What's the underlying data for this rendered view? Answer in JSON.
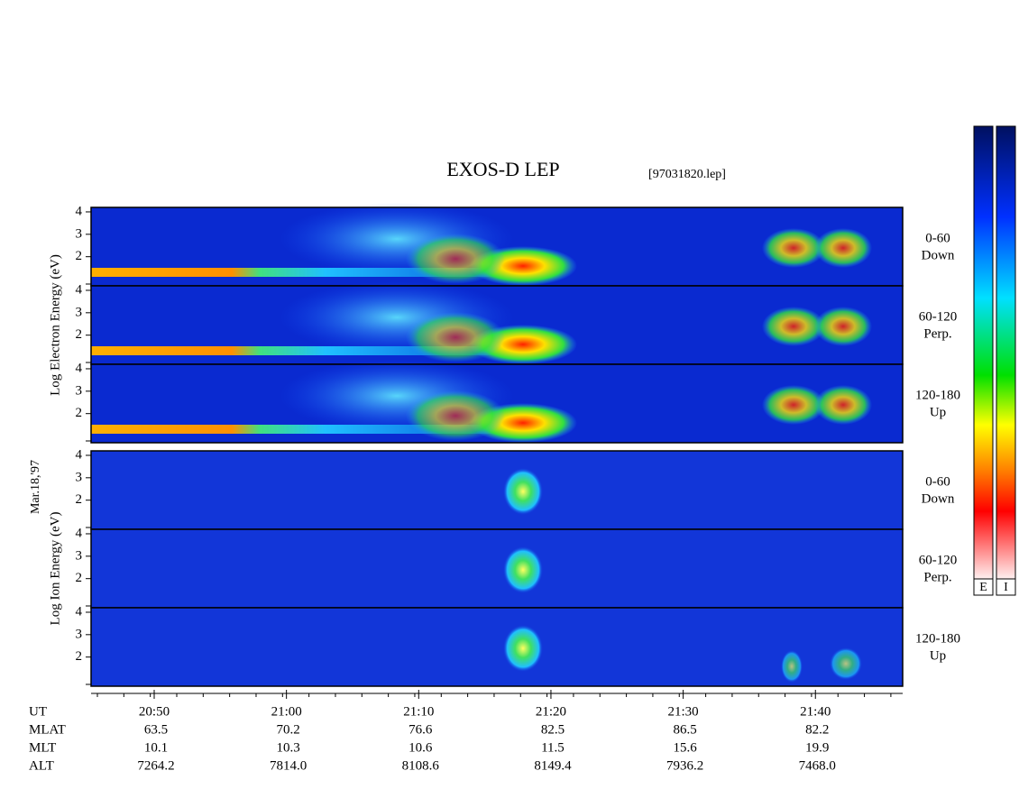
{
  "title": "EXOS-D LEP",
  "file": "[97031820.lep]",
  "date": "Mar.18,'97",
  "groups": [
    {
      "ylabel": "Log   Electron   Energy   (eV)",
      "panels": [
        {
          "angle": "0-60",
          "dir": "Down"
        },
        {
          "angle": "60-120",
          "dir": "Perp."
        },
        {
          "angle": "120-180",
          "dir": "Up"
        }
      ]
    },
    {
      "ylabel": "Log   Ion   Energy   (eV)",
      "panels": [
        {
          "angle": "0-60",
          "dir": "Down"
        },
        {
          "angle": "60-120",
          "dir": "Perp."
        },
        {
          "angle": "120-180",
          "dir": "Up"
        }
      ]
    }
  ],
  "yticks": [
    2,
    3,
    4
  ],
  "time_axis": {
    "label": "UT",
    "ticks": [
      "20:50",
      "21:00",
      "21:10",
      "21:20",
      "21:30",
      "21:40"
    ]
  },
  "ephemeris": [
    {
      "label": "MLAT",
      "values": [
        "63.5",
        "70.2",
        "76.6",
        "82.5",
        "86.5",
        "82.2"
      ]
    },
    {
      "label": "MLT",
      "values": [
        "10.1",
        "10.3",
        "10.6",
        "11.5",
        "15.6",
        "19.9"
      ]
    },
    {
      "label": "ALT",
      "values": [
        "7264.2",
        "7814.0",
        "8108.6",
        "8149.4",
        "7936.2",
        "7468.0"
      ]
    }
  ],
  "colorbars": [
    "E",
    "I"
  ]
}
